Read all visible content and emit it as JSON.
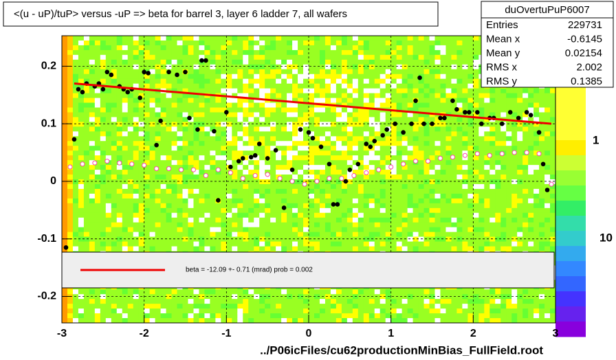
{
  "chart_data": {
    "type": "scatter",
    "title": "<(u - uP)/tuP> versus  -uP => beta for barrel 3, layer 6 ladder 7, all wafers",
    "x_label": "../P06icFiles/cu62productionMinBias_FullField.root",
    "xlim": [
      -3,
      3
    ],
    "xticks": [
      -3,
      -2,
      -1,
      0,
      1,
      2,
      3
    ],
    "ylim": [
      -0.246,
      0.253
    ],
    "yticks": [
      -0.2,
      -0.1,
      0,
      0.1,
      0.2
    ],
    "grid": true,
    "series": [
      {
        "name": "profile",
        "color": "#000000",
        "marker": "filled",
        "x": [
          -2.95,
          -2.85,
          -2.8,
          -2.75,
          -2.7,
          -2.6,
          -2.55,
          -2.5,
          -2.45,
          -2.4,
          -2.3,
          -2.25,
          -2.2,
          -2.15,
          -2.05,
          -2.0,
          -1.95,
          -1.85,
          -1.8,
          -1.7,
          -1.6,
          -1.5,
          -1.45,
          -1.35,
          -1.3,
          -1.25,
          -1.15,
          -1.1,
          -1.0,
          -0.95,
          -0.85,
          -0.8,
          -0.7,
          -0.65,
          -0.6,
          -0.5,
          -0.4,
          -0.3,
          -0.2,
          -0.1,
          0.0,
          0.05,
          0.15,
          0.25,
          0.3,
          0.35,
          0.45,
          0.5,
          0.6,
          0.7,
          0.75,
          0.8,
          0.9,
          0.95,
          1.05,
          1.15,
          1.25,
          1.3,
          1.35,
          1.4,
          1.5,
          1.6,
          1.65,
          1.75,
          1.8,
          1.9,
          1.95,
          2.05,
          2.1,
          2.2,
          2.25,
          2.35,
          2.45,
          2.55,
          2.65,
          2.7,
          2.8,
          2.85,
          2.9
        ],
        "values": [
          -0.115,
          0.073,
          0.16,
          0.155,
          0.17,
          0.165,
          0.17,
          0.16,
          0.19,
          0.185,
          0.165,
          0.16,
          0.155,
          0.16,
          0.145,
          0.19,
          0.188,
          0.063,
          0.105,
          0.19,
          0.185,
          0.19,
          0.11,
          0.09,
          0.21,
          0.21,
          0.087,
          -0.033,
          0.12,
          0.025,
          0.035,
          0.04,
          0.042,
          0.045,
          0.065,
          0.04,
          0.054,
          -0.046,
          0.02,
          0.09,
          0.085,
          0.075,
          0.06,
          0.03,
          -0.04,
          -0.04,
          0.0,
          0.02,
          0.03,
          0.065,
          0.06,
          0.07,
          0.08,
          0.09,
          0.1,
          0.085,
          0.1,
          0.14,
          0.18,
          0.1,
          0.1,
          0.11,
          0.11,
          0.14,
          0.125,
          0.12,
          0.12,
          0.12,
          0.1,
          0.11,
          0.11,
          0.1,
          0.12,
          0.11,
          0.12,
          0.115,
          0.085,
          0.03,
          -0.015
        ]
      },
      {
        "name": "mean",
        "color": "#ff44aa",
        "marker": "open",
        "x": [
          -2.9,
          -2.75,
          -2.6,
          -2.45,
          -2.3,
          -2.15,
          -2.0,
          -1.85,
          -1.7,
          -1.55,
          -1.4,
          -1.25,
          -1.1,
          -0.95,
          -0.8,
          -0.65,
          -0.5,
          -0.35,
          -0.2,
          -0.05,
          0.1,
          0.25,
          0.4,
          0.55,
          0.7,
          0.85,
          1.0,
          1.15,
          1.3,
          1.45,
          1.6,
          1.75,
          1.9,
          2.05,
          2.2,
          2.35,
          2.5,
          2.65,
          2.8,
          2.95
        ],
        "values": [
          0.025,
          0.03,
          0.032,
          0.035,
          0.032,
          0.03,
          0.028,
          0.022,
          0.022,
          0.02,
          0.02,
          0.01,
          0.02,
          0.015,
          0.005,
          0.01,
          0.012,
          0.005,
          0.0,
          -0.005,
          0.0,
          0.005,
          0.005,
          0.01,
          0.015,
          0.02,
          0.025,
          0.03,
          0.035,
          0.035,
          0.04,
          0.042,
          0.045,
          0.048,
          0.045,
          0.048,
          0.05,
          0.05,
          0.048,
          -0.005
        ]
      },
      {
        "name": "fit",
        "color": "#ee0000",
        "marker": "line",
        "x": [
          -2.85,
          2.95
        ],
        "values": [
          0.17,
          0.1
        ]
      }
    ],
    "legend_text": "beta =  -12.09 +-  0.71 (mrad) prob = 0.002",
    "stats": {
      "title": "duOvertuPuP6007",
      "rows": [
        [
          "Entries",
          "229731"
        ],
        [
          "Mean x",
          "-0.6145"
        ],
        [
          "Mean y",
          "0.02154"
        ],
        [
          "RMS x",
          "2.002"
        ],
        [
          "RMS y",
          "0.1385"
        ]
      ]
    },
    "colorbar_labels": [
      "1",
      "10"
    ]
  }
}
